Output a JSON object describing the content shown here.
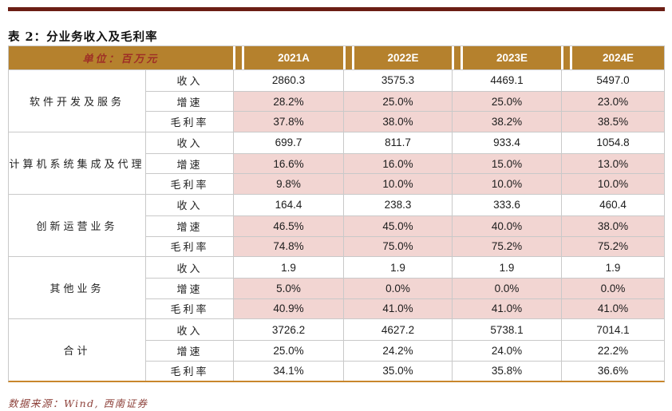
{
  "title": "表 2：分业务收入及毛利率",
  "source_note": "数据来源：Wind, 西南证券",
  "table": {
    "unit_header": "单位：百万元",
    "year_columns": [
      "2021A",
      "2022E",
      "2023E",
      "2024E"
    ],
    "metric_labels": [
      "收入",
      "增速",
      "毛利率"
    ],
    "groups": [
      {
        "name": "软件开发及服务",
        "rows": [
          {
            "metric": "收入",
            "shaded": false,
            "values": [
              "2860.3",
              "3575.3",
              "4469.1",
              "5497.0"
            ]
          },
          {
            "metric": "增速",
            "shaded": true,
            "values": [
              "28.2%",
              "25.0%",
              "25.0%",
              "23.0%"
            ]
          },
          {
            "metric": "毛利率",
            "shaded": true,
            "values": [
              "37.8%",
              "38.0%",
              "38.2%",
              "38.5%"
            ]
          }
        ]
      },
      {
        "name": "计算机系统集成及代理",
        "rows": [
          {
            "metric": "收入",
            "shaded": false,
            "values": [
              "699.7",
              "811.7",
              "933.4",
              "1054.8"
            ]
          },
          {
            "metric": "增速",
            "shaded": true,
            "values": [
              "16.6%",
              "16.0%",
              "15.0%",
              "13.0%"
            ]
          },
          {
            "metric": "毛利率",
            "shaded": true,
            "values": [
              "9.8%",
              "10.0%",
              "10.0%",
              "10.0%"
            ]
          }
        ]
      },
      {
        "name": "创新运营业务",
        "rows": [
          {
            "metric": "收入",
            "shaded": false,
            "values": [
              "164.4",
              "238.3",
              "333.6",
              "460.4"
            ]
          },
          {
            "metric": "增速",
            "shaded": true,
            "values": [
              "46.5%",
              "45.0%",
              "40.0%",
              "38.0%"
            ]
          },
          {
            "metric": "毛利率",
            "shaded": true,
            "values": [
              "74.8%",
              "75.0%",
              "75.2%",
              "75.2%"
            ]
          }
        ]
      },
      {
        "name": "其他业务",
        "rows": [
          {
            "metric": "收入",
            "shaded": false,
            "values": [
              "1.9",
              "1.9",
              "1.9",
              "1.9"
            ]
          },
          {
            "metric": "增速",
            "shaded": true,
            "values": [
              "5.0%",
              "0.0%",
              "0.0%",
              "0.0%"
            ]
          },
          {
            "metric": "毛利率",
            "shaded": true,
            "values": [
              "40.9%",
              "41.0%",
              "41.0%",
              "41.0%"
            ]
          }
        ]
      },
      {
        "name": "合计",
        "rows": [
          {
            "metric": "收入",
            "shaded": false,
            "values": [
              "3726.2",
              "4627.2",
              "5738.1",
              "7014.1"
            ]
          },
          {
            "metric": "增速",
            "shaded": false,
            "values": [
              "25.0%",
              "24.2%",
              "24.0%",
              "22.2%"
            ]
          },
          {
            "metric": "毛利率",
            "shaded": false,
            "values": [
              "34.1%",
              "35.0%",
              "35.8%",
              "36.6%"
            ]
          }
        ]
      }
    ]
  },
  "colors": {
    "header_bg": "#b5812d",
    "header_year_text": "#ffffff",
    "unit_text": "#9e2f26",
    "shaded_cell_bg": "#f2d5d2",
    "grid_line": "#c9c9c9",
    "table_bottom_border": "#c8862c",
    "top_rule": "#6b1e14",
    "source_text": "#8e423b",
    "number_text": "#1c1c1c"
  }
}
